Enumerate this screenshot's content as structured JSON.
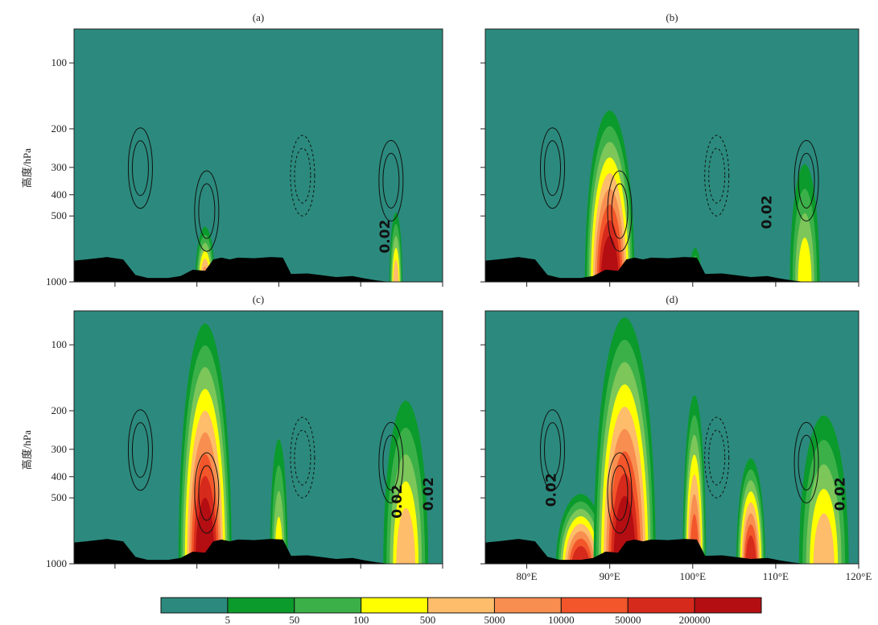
{
  "chart_data": {
    "type": "heatmap",
    "description_units": {
      "x": "degrees East",
      "y": "hPa"
    },
    "panels": [
      {
        "title": "(a)",
        "x_ticks": [],
        "plumes": [
          {
            "center_lon": 91.0,
            "width_deg": 2.4,
            "top_hpa": 560,
            "max_level": 6
          },
          {
            "center_lon": 114.3,
            "width_deg": 1.6,
            "top_hpa": 480,
            "max_level": 5
          }
        ],
        "contour_labels": [
          {
            "text": "0.02",
            "lon": 113.5,
            "p": 620
          }
        ]
      },
      {
        "title": "(b)",
        "x_ticks": [],
        "plumes": [
          {
            "center_lon": 90.0,
            "width_deg": 6.0,
            "top_hpa": 165,
            "max_level": 9
          },
          {
            "center_lon": 100.3,
            "width_deg": 1.5,
            "top_hpa": 700,
            "max_level": 4
          },
          {
            "center_lon": 113.5,
            "width_deg": 3.6,
            "top_hpa": 290,
            "max_level": 4
          }
        ],
        "contour_labels": [
          {
            "text": "0.02",
            "lon": 109.5,
            "p": 480
          }
        ]
      },
      {
        "title": "(c)",
        "x_ticks": [],
        "plumes": [
          {
            "center_lon": 91.0,
            "width_deg": 6.5,
            "top_hpa": 80,
            "max_level": 9
          },
          {
            "center_lon": 100.0,
            "width_deg": 2.2,
            "top_hpa": 270,
            "max_level": 4
          },
          {
            "center_lon": 115.5,
            "width_deg": 5.5,
            "top_hpa": 180,
            "max_level": 5
          }
        ],
        "contour_labels": [
          {
            "text": "0.02",
            "lon": 115.0,
            "p": 520
          },
          {
            "text": "0.02",
            "lon": 118.8,
            "p": 480
          }
        ]
      },
      {
        "title": "(d)",
        "x_ticks": [
          "80°E",
          "90°E",
          "100°E",
          "110°E",
          "120°E"
        ],
        "plumes": [
          {
            "center_lon": 86.5,
            "width_deg": 6.0,
            "top_hpa": 480,
            "max_level": 8
          },
          {
            "center_lon": 91.8,
            "width_deg": 7.5,
            "top_hpa": 75,
            "max_level": 9
          },
          {
            "center_lon": 100.2,
            "width_deg": 2.8,
            "top_hpa": 170,
            "max_level": 7
          },
          {
            "center_lon": 107.0,
            "width_deg": 3.5,
            "top_hpa": 330,
            "max_level": 8
          },
          {
            "center_lon": 115.8,
            "width_deg": 6.0,
            "top_hpa": 210,
            "max_level": 5
          }
        ],
        "contour_labels": [
          {
            "text": "0.02",
            "lon": 83.5,
            "p": 460
          },
          {
            "text": "0.02",
            "lon": 118.3,
            "p": 480
          }
        ]
      }
    ],
    "x_axis": {
      "range": [
        75,
        120
      ],
      "ticks": [
        80,
        90,
        100,
        110,
        120
      ],
      "tick_labels": [
        "80°E",
        "90°E",
        "100°E",
        "110°E",
        "120°E"
      ]
    },
    "y_axis": {
      "label": "高度/hPa",
      "scale": "log",
      "range": [
        1000,
        70
      ],
      "ticks": [
        100,
        200,
        300,
        400,
        500,
        1000
      ],
      "tick_labels": [
        "100",
        "200",
        "300",
        "400",
        "500",
        "1000"
      ]
    },
    "colorbar": {
      "boundaries": [
        "5",
        "50",
        "100",
        "500",
        "5000",
        "10000",
        "50000",
        "200000"
      ],
      "colors": [
        "#2b8a7d",
        "#0b9a2c",
        "#3cb048",
        "#7cc65a",
        "#ffff00",
        "#fdbd6b",
        "#f88e50",
        "#f2562a",
        "#d62a1c",
        "#b40e12",
        "#8a0a0a"
      ]
    },
    "terrain_color": "#000000",
    "background_color": "#2b8a7d"
  }
}
